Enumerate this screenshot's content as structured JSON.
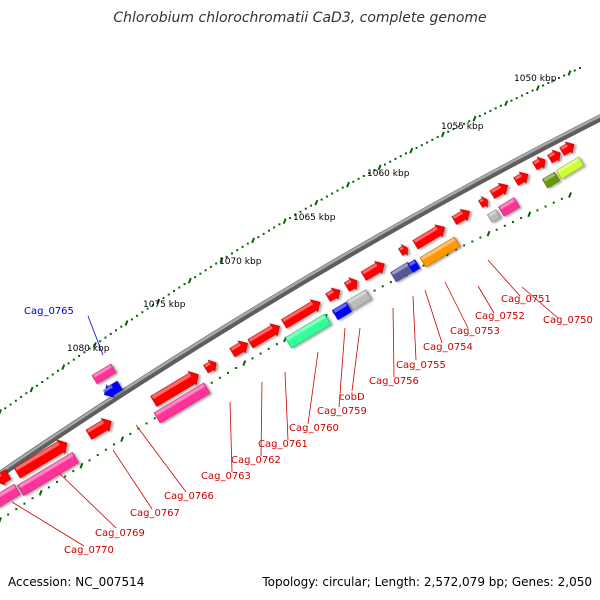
{
  "title": "Chlorobium chlorochromatii CaD3, complete genome",
  "footer": {
    "accession": "Accession: NC_007514",
    "summary": "Topology: circular; Length: 2,572,079 bp; Genes: 2,050"
  },
  "scale_labels": [
    "1050 kbp",
    "1055 kbp",
    "1060 kbp",
    "1065 kbp",
    "1070 kbp",
    "1075 kbp",
    "1080 kbp"
  ],
  "gene_labels": [
    "Cag_0750",
    "Cag_0751",
    "Cag_0752",
    "Cag_0753",
    "Cag_0754",
    "Cag_0755",
    "Cag_0756",
    "cobD",
    "Cag_0759",
    "Cag_0760",
    "Cag_0761",
    "Cag_0762",
    "Cag_0763",
    "Cag_0765",
    "Cag_0766",
    "Cag_0767",
    "Cag_0769",
    "Cag_0770"
  ],
  "colors": {
    "backbone": "#808080",
    "gene_red": "#ff0000",
    "gene_magenta": "#ff3399",
    "gene_blue": "#0000ff",
    "gene_teal": "#33ff99",
    "gene_orange": "#ff9900",
    "gene_grey": "#bbbbbb",
    "gene_olive": "#669900",
    "gene_lime": "#ccff33",
    "gene_slate": "#555599",
    "label_red": "#cc0000",
    "label_blue": "#0000cc",
    "tick_green": "#006600"
  }
}
